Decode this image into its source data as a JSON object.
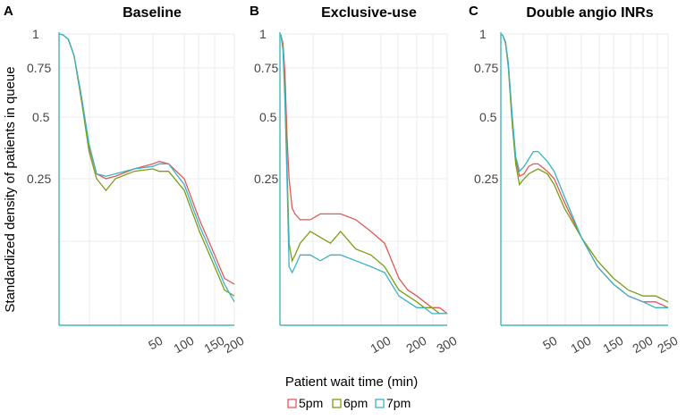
{
  "figure": {
    "ylabel": "Standardized density of patients in queue",
    "xlabel": "Patient wait time (min)",
    "legend_position": "bottom"
  },
  "colors": {
    "5pm": "#e05a57",
    "6pm": "#7a9d14",
    "7pm": "#3cb2c6",
    "axis": "#4bb6b0"
  },
  "chart_data": [
    {
      "type": "line",
      "letter": "A",
      "title": "Baseline",
      "yticks": [
        "0.25",
        "0.5",
        "0.75",
        "1"
      ],
      "xticks": [
        "50",
        "100",
        "150",
        "200"
      ],
      "xlim": [
        0,
        200
      ],
      "ylim": [
        0,
        1
      ],
      "grid": true,
      "series": [
        {
          "name": "5pm",
          "x": [
            0,
            2,
            5,
            8,
            12,
            16,
            20,
            25,
            30,
            40,
            50,
            60,
            75,
            100,
            125,
            150,
            175,
            200
          ],
          "y": [
            1,
            0.995,
            0.96,
            0.84,
            0.6,
            0.38,
            0.27,
            0.25,
            0.26,
            0.29,
            0.31,
            0.32,
            0.31,
            0.25,
            0.18,
            0.12,
            0.08,
            0.07
          ]
        },
        {
          "name": "6pm",
          "x": [
            0,
            2,
            5,
            8,
            12,
            16,
            20,
            25,
            30,
            40,
            50,
            60,
            75,
            100,
            125,
            150,
            175,
            200
          ],
          "y": [
            1,
            0.995,
            0.96,
            0.84,
            0.58,
            0.36,
            0.25,
            0.23,
            0.25,
            0.28,
            0.29,
            0.28,
            0.28,
            0.23,
            0.16,
            0.1,
            0.06,
            0.05
          ]
        },
        {
          "name": "7pm",
          "x": [
            0,
            2,
            5,
            8,
            12,
            16,
            20,
            25,
            30,
            40,
            50,
            60,
            75,
            100,
            125,
            150,
            175,
            200
          ],
          "y": [
            1,
            0.995,
            0.96,
            0.84,
            0.6,
            0.39,
            0.27,
            0.26,
            0.27,
            0.29,
            0.3,
            0.31,
            0.31,
            0.24,
            0.17,
            0.11,
            0.07,
            0.04
          ]
        }
      ]
    },
    {
      "type": "line",
      "letter": "B",
      "title": "Exclusive-use",
      "yticks": [
        "0.25",
        "0.5",
        "0.75",
        "1"
      ],
      "xticks": [
        "100",
        "200",
        "300"
      ],
      "xlim": [
        0,
        300
      ],
      "ylim": [
        0,
        1
      ],
      "grid": true,
      "series": [
        {
          "name": "5pm",
          "x": [
            0,
            1,
            3,
            5,
            7,
            9,
            12,
            15,
            20,
            30,
            40,
            50,
            60,
            75,
            90,
            110,
            130,
            150,
            175,
            200,
            225,
            250,
            275,
            300
          ],
          "y": [
            1,
            0.99,
            0.93,
            0.72,
            0.42,
            0.25,
            0.2,
            0.19,
            0.18,
            0.18,
            0.19,
            0.19,
            0.19,
            0.18,
            0.16,
            0.14,
            0.11,
            0.08,
            0.06,
            0.05,
            0.04,
            0.03,
            0.03,
            0.02
          ]
        },
        {
          "name": "6pm",
          "x": [
            0,
            1,
            3,
            5,
            7,
            9,
            12,
            15,
            20,
            30,
            40,
            50,
            60,
            75,
            90,
            110,
            130,
            150,
            175,
            200,
            225,
            250,
            275,
            300
          ],
          "y": [
            1,
            0.99,
            0.9,
            0.62,
            0.3,
            0.14,
            0.11,
            0.12,
            0.14,
            0.16,
            0.15,
            0.14,
            0.16,
            0.13,
            0.12,
            0.1,
            0.08,
            0.06,
            0.05,
            0.04,
            0.03,
            0.03,
            0.02,
            0.02
          ]
        },
        {
          "name": "7pm",
          "x": [
            0,
            1,
            3,
            5,
            7,
            9,
            12,
            15,
            20,
            30,
            40,
            50,
            60,
            75,
            90,
            110,
            130,
            150,
            175,
            200,
            225,
            250,
            275,
            300
          ],
          "y": [
            1,
            0.99,
            0.88,
            0.58,
            0.25,
            0.1,
            0.09,
            0.1,
            0.12,
            0.12,
            0.11,
            0.12,
            0.12,
            0.11,
            0.1,
            0.09,
            0.07,
            0.05,
            0.04,
            0.03,
            0.03,
            0.02,
            0.02,
            0.02
          ]
        }
      ]
    },
    {
      "type": "line",
      "letter": "C",
      "title": "Double angio INRs",
      "yticks": [
        "0.25",
        "0.5",
        "0.75",
        "1"
      ],
      "xticks": [
        "50",
        "100",
        "150",
        "200",
        "250"
      ],
      "xlim": [
        0,
        250
      ],
      "ylim": [
        0,
        1
      ],
      "grid": true,
      "series": [
        {
          "name": "5pm",
          "x": [
            0,
            2,
            5,
            8,
            12,
            16,
            20,
            25,
            30,
            35,
            40,
            50,
            60,
            75,
            100,
            125,
            150,
            175,
            200,
            225,
            250
          ],
          "y": [
            1,
            0.99,
            0.94,
            0.78,
            0.5,
            0.33,
            0.26,
            0.27,
            0.3,
            0.31,
            0.31,
            0.28,
            0.25,
            0.21,
            0.15,
            0.1,
            0.07,
            0.05,
            0.04,
            0.04,
            0.03
          ]
        },
        {
          "name": "6pm",
          "x": [
            0,
            2,
            5,
            8,
            12,
            16,
            20,
            25,
            30,
            35,
            40,
            50,
            60,
            75,
            100,
            125,
            150,
            175,
            200,
            225,
            250
          ],
          "y": [
            1,
            0.99,
            0.93,
            0.76,
            0.48,
            0.31,
            0.24,
            0.25,
            0.27,
            0.28,
            0.29,
            0.27,
            0.24,
            0.2,
            0.15,
            0.11,
            0.08,
            0.06,
            0.05,
            0.05,
            0.04
          ]
        },
        {
          "name": "7pm",
          "x": [
            0,
            2,
            5,
            8,
            12,
            16,
            20,
            25,
            30,
            35,
            40,
            50,
            60,
            75,
            100,
            125,
            150,
            175,
            200,
            225,
            250
          ],
          "y": [
            1,
            0.99,
            0.94,
            0.79,
            0.52,
            0.34,
            0.28,
            0.3,
            0.33,
            0.36,
            0.36,
            0.32,
            0.28,
            0.22,
            0.15,
            0.1,
            0.07,
            0.05,
            0.04,
            0.03,
            0.03
          ]
        }
      ]
    }
  ]
}
